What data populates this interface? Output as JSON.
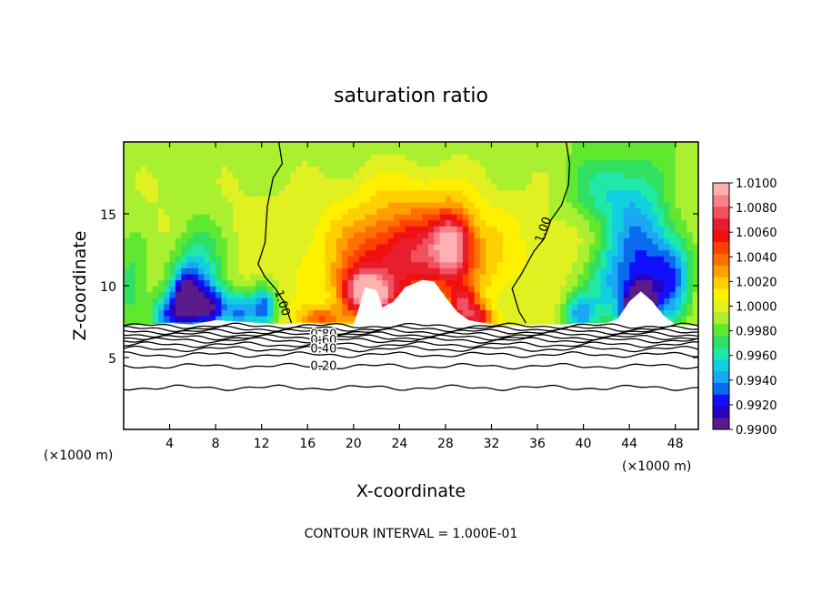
{
  "chart_data": {
    "type": "heatmap",
    "title": "saturation ratio",
    "xlabel": "X-coordinate",
    "ylabel": "Z-coordinate",
    "x_unit": "(×1000 m)",
    "xlim": [
      0,
      50
    ],
    "ylim": [
      0,
      20
    ],
    "x_ticks": [
      "4",
      "8",
      "12",
      "16",
      "20",
      "24",
      "28",
      "32",
      "36",
      "40",
      "44",
      "48"
    ],
    "y_ticks": [
      "5",
      "10",
      "15"
    ],
    "footnote": "CONTOUR INTERVAL = 1.000E-01",
    "colorbar": {
      "labels": [
        "1.0100",
        "1.0080",
        "1.0060",
        "1.0040",
        "1.0020",
        "1.0000",
        "0.9980",
        "0.9960",
        "0.9940",
        "0.9920",
        "0.9900"
      ],
      "min": 0.99,
      "max": 1.01,
      "colors": [
        "#5a1a8a",
        "#2a00c0",
        "#1010ff",
        "#0a6af0",
        "#1aa8f5",
        "#10d0e0",
        "#20e8a8",
        "#30e060",
        "#60e830",
        "#a8f030",
        "#e0f020",
        "#fff000",
        "#ffd000",
        "#ffa000",
        "#ff7000",
        "#ff4000",
        "#f01010",
        "#e81e2e",
        "#f05060",
        "#f88088",
        "#ffb0b0"
      ]
    },
    "contour_labels": [
      "1.00",
      "1.00",
      "0.80",
      "0.60",
      "0.40",
      "0.20"
    ],
    "cloud_boundary_z": [
      [
        0,
        7.2
      ],
      [
        2,
        7.3
      ],
      [
        4,
        7.4
      ],
      [
        6,
        7.3
      ],
      [
        8,
        7.6
      ],
      [
        10,
        7.5
      ],
      [
        12,
        7.4
      ],
      [
        14,
        7.3
      ],
      [
        16,
        7.4
      ],
      [
        18,
        7.3
      ],
      [
        20,
        7.3
      ],
      [
        20.5,
        8.5
      ],
      [
        21,
        9.9
      ],
      [
        22,
        9.7
      ],
      [
        22.5,
        8.5
      ],
      [
        23.5,
        8.9
      ],
      [
        24.5,
        9.9
      ],
      [
        26,
        10.4
      ],
      [
        27,
        10.3
      ],
      [
        28,
        9.2
      ],
      [
        29,
        8.2
      ],
      [
        30,
        7.6
      ],
      [
        32,
        7.3
      ],
      [
        34,
        7.2
      ],
      [
        36,
        7.3
      ],
      [
        38,
        7.3
      ],
      [
        40,
        7.4
      ],
      [
        42,
        7.4
      ],
      [
        43,
        7.7
      ],
      [
        44,
        8.9
      ],
      [
        45,
        9.6
      ],
      [
        46,
        8.9
      ],
      [
        47,
        7.9
      ],
      [
        48,
        7.3
      ],
      [
        50,
        7.2
      ]
    ],
    "contour_line_1_00_left": [
      [
        13.5,
        20
      ],
      [
        13.8,
        18.5
      ],
      [
        13,
        17.5
      ],
      [
        12.5,
        15.5
      ],
      [
        12.3,
        13
      ],
      [
        11.7,
        11.5
      ],
      [
        12.3,
        10.6
      ],
      [
        13.2,
        9.8
      ],
      [
        14,
        8.8
      ],
      [
        14.6,
        7.4
      ]
    ],
    "contour_line_1_00_right": [
      [
        38.5,
        20
      ],
      [
        38.8,
        18.5
      ],
      [
        38.7,
        17
      ],
      [
        38.1,
        15.6
      ],
      [
        37.2,
        14.6
      ],
      [
        36.6,
        13.3
      ],
      [
        35.7,
        12.4
      ],
      [
        34.6,
        10.8
      ],
      [
        33.8,
        9.8
      ],
      [
        34.4,
        8.2
      ],
      [
        35,
        7.4
      ]
    ],
    "below_cloud_contours": [
      {
        "label": "",
        "z": 7.2
      },
      {
        "label": "",
        "z": 7.0
      },
      {
        "label": "",
        "z": 6.8
      },
      {
        "label": "0.80",
        "z": 6.6
      },
      {
        "label": "",
        "z": 6.4
      },
      {
        "label": "0.60",
        "z": 6.2
      },
      {
        "label": "",
        "z": 5.9
      },
      {
        "label": "0.40",
        "z": 5.6
      },
      {
        "label": "",
        "z": 5.2
      },
      {
        "label": "0.20",
        "z": 4.4
      },
      {
        "label": "",
        "z": 2.9
      }
    ],
    "hotspots": [
      {
        "x": 25,
        "z": 12,
        "value": 1.007,
        "sx": 6,
        "sz": 3.2
      },
      {
        "x": 28.6,
        "z": 13,
        "value": 1.0062,
        "sx": 1.6,
        "sz": 2.2
      },
      {
        "x": 20.5,
        "z": 9.6,
        "value": 1.006,
        "sx": 1.8,
        "sz": 1.8
      },
      {
        "x": 22,
        "z": 9.3,
        "value": 1.0055,
        "sx": 1.8,
        "sz": 1.4
      },
      {
        "x": 17.2,
        "z": 7.8,
        "value": 1.004,
        "sx": 1.8,
        "sz": 0.8
      },
      {
        "x": 29.6,
        "z": 8.6,
        "value": 1.0055,
        "sx": 1.3,
        "sz": 1.4
      },
      {
        "x": 31,
        "z": 7.8,
        "value": 1.0045,
        "sx": 1.4,
        "sz": 0.8
      },
      {
        "x": 25,
        "z": 16.5,
        "value": 1.0012,
        "sx": 6,
        "sz": 2.5
      },
      {
        "x": 6.5,
        "z": 10.5,
        "value": 0.9952,
        "sx": 2.2,
        "sz": 4
      },
      {
        "x": 7.5,
        "z": 8.5,
        "value": 0.9932,
        "sx": 1.8,
        "sz": 1.5
      },
      {
        "x": 3.8,
        "z": 8,
        "value": 0.9945,
        "sx": 1.4,
        "sz": 1.5
      },
      {
        "x": 5.3,
        "z": 9.3,
        "value": 0.994,
        "sx": 1.2,
        "sz": 2
      },
      {
        "x": 10.2,
        "z": 8.2,
        "value": 0.9945,
        "sx": 1.2,
        "sz": 1.4
      },
      {
        "x": 12.2,
        "z": 8.5,
        "value": 0.9935,
        "sx": 1.0,
        "sz": 1.4
      },
      {
        "x": 0.6,
        "z": 10,
        "value": 0.9972,
        "sx": 1.8,
        "sz": 4
      },
      {
        "x": 45,
        "z": 12,
        "value": 0.9935,
        "sx": 2.6,
        "sz": 5
      },
      {
        "x": 45,
        "z": 9,
        "value": 0.9915,
        "sx": 1.2,
        "sz": 1.2
      },
      {
        "x": 47.8,
        "z": 10.5,
        "value": 0.9945,
        "sx": 1.8,
        "sz": 3
      },
      {
        "x": 44.6,
        "z": 8,
        "value": 0.9922,
        "sx": 1.2,
        "sz": 1
      },
      {
        "x": 39.6,
        "z": 8,
        "value": 0.995,
        "sx": 1.4,
        "sz": 1.4
      },
      {
        "x": 42,
        "z": 10,
        "value": 0.9965,
        "sx": 2.2,
        "sz": 3
      },
      {
        "x": 41.8,
        "z": 16.5,
        "value": 0.997,
        "sx": 3,
        "sz": 2.5
      }
    ]
  }
}
